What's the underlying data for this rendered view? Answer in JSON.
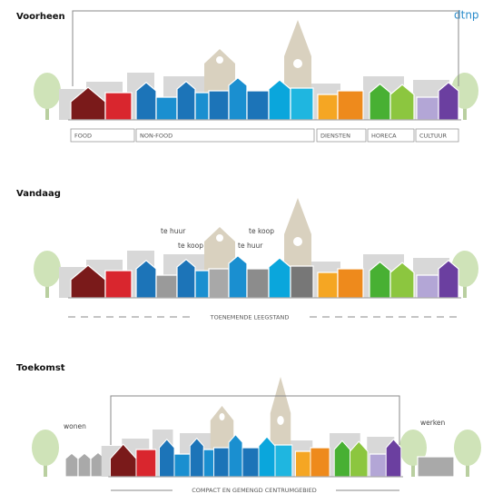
{
  "header": {
    "logo": "dtnp"
  },
  "panels": [
    {
      "title": "Voorheen",
      "labels": [
        "FOOD",
        "NON-FOOD",
        "DIENSTEN",
        "HORECA",
        "CULTUUR"
      ]
    },
    {
      "title": "Vandaag",
      "annotations": [
        "te huur",
        "te koop",
        "te koop",
        "te huur"
      ],
      "caption": "TOENEMENDE LEEGSTAND"
    },
    {
      "title": "Toekomst",
      "annotations": [
        "wonen",
        "werken"
      ],
      "caption": "COMPACT EN GEMENGD CENTRUMGEBIED"
    }
  ]
}
